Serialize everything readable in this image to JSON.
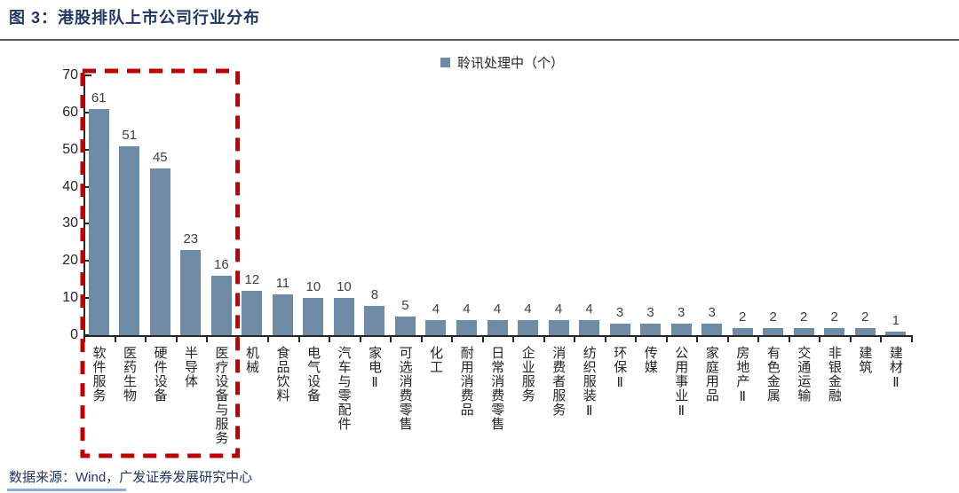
{
  "figure": {
    "title": "图 3：港股排队上市公司行业分布",
    "source": "数据来源：Wind，广发证券发展研究中心"
  },
  "chart_data": {
    "type": "bar",
    "title": "图 3：港股排队上市公司行业分布",
    "legend": [
      "聆讯处理中（个）"
    ],
    "legend_position": "top-center",
    "categories": [
      "软件服务",
      "医药生物",
      "硬件设备",
      "半导体",
      "医疗设备与服务",
      "机械",
      "食品饮料",
      "电气设备",
      "汽车与零配件",
      "家电Ⅱ",
      "可选消费零售",
      "化工",
      "耐用消费品",
      "日常消费零售",
      "企业服务",
      "消费者服务",
      "纺织服装Ⅱ",
      "环保Ⅱ",
      "传媒",
      "公用事业Ⅱ",
      "家庭用品",
      "房地产Ⅱ",
      "有色金属",
      "交通运输",
      "非银金融",
      "建筑",
      "建材Ⅱ"
    ],
    "values": [
      61,
      51,
      45,
      23,
      16,
      12,
      11,
      10,
      10,
      8,
      5,
      4,
      4,
      4,
      4,
      4,
      4,
      3,
      3,
      3,
      3,
      2,
      2,
      2,
      2,
      2,
      1
    ],
    "ylim": [
      0,
      70
    ],
    "yticks": [
      0,
      10,
      20,
      30,
      40,
      50,
      60,
      70
    ],
    "grid": false,
    "value_labels": true,
    "bar_color": "#6E8CA6",
    "annotation": {
      "type": "dashed-rect",
      "color": "#C00000",
      "highlight_categories": [
        "软件服务",
        "医药生物",
        "硬件设备",
        "半导体",
        "医疗设备与服务"
      ]
    }
  },
  "colors": {
    "title_text": "#203864",
    "source_text": "#203864",
    "divider": "#595959",
    "axis": "#262626",
    "bottom_rule": "#8FAADC"
  }
}
